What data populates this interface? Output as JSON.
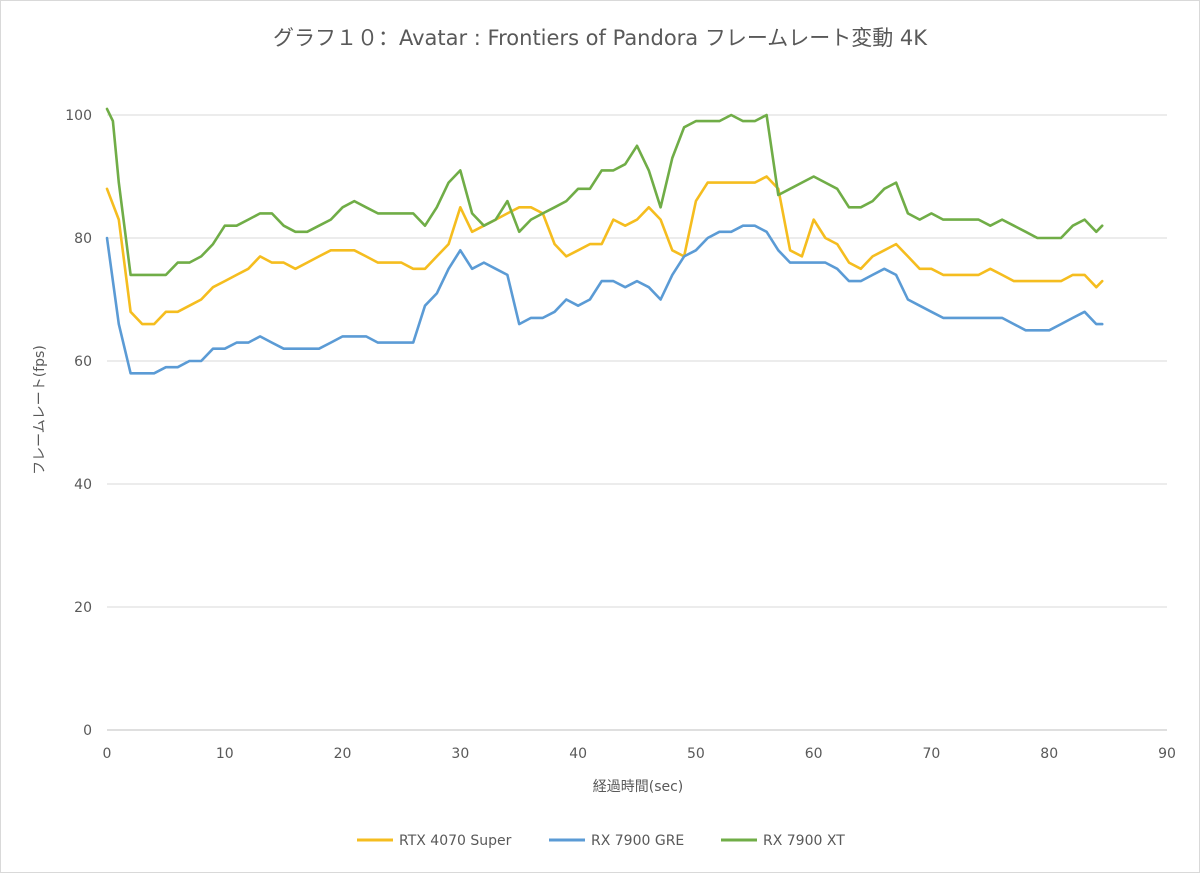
{
  "chart_data": {
    "type": "line",
    "title": "グラフ１０：Avatar : Frontiers of Pandora フレームレート変動 4K",
    "xlabel": "経過時間(sec)",
    "ylabel": "フレームレート(fps)",
    "xlim": [
      0,
      90
    ],
    "ylim": [
      0,
      100
    ],
    "x_ticks": [
      0,
      10,
      20,
      30,
      40,
      50,
      60,
      70,
      80,
      90
    ],
    "y_ticks": [
      0,
      20,
      40,
      60,
      80,
      100
    ],
    "grid": "horizontal",
    "legend": "bottom",
    "series": [
      {
        "name": "RTX 4070 Super",
        "color": "#f5bd1f",
        "x": [
          0,
          1,
          2,
          3,
          4,
          5,
          6,
          7,
          8,
          9,
          10,
          11,
          12,
          13,
          14,
          15,
          16,
          17,
          18,
          19,
          20,
          21,
          22,
          23,
          24,
          25,
          26,
          27,
          28,
          29,
          30,
          31,
          32,
          33,
          34,
          35,
          36,
          37,
          38,
          39,
          40,
          41,
          42,
          43,
          44,
          45,
          46,
          47,
          48,
          49,
          50,
          51,
          52,
          53,
          54,
          55,
          56,
          57,
          58,
          59,
          60,
          61,
          62,
          63,
          64,
          65,
          66,
          67,
          68,
          69,
          70,
          71,
          72,
          73,
          74,
          75,
          76,
          77,
          78,
          79,
          80,
          81,
          82,
          83,
          84,
          84.5
        ],
        "y": [
          88,
          83,
          68,
          66,
          66,
          68,
          68,
          69,
          70,
          72,
          73,
          74,
          75,
          77,
          76,
          76,
          75,
          76,
          77,
          78,
          78,
          78,
          77,
          76,
          76,
          76,
          75,
          75,
          77,
          79,
          85,
          81,
          82,
          83,
          84,
          85,
          85,
          84,
          79,
          77,
          78,
          79,
          79,
          83,
          82,
          83,
          85,
          83,
          78,
          77,
          86,
          89,
          89,
          89,
          89,
          89,
          90,
          88,
          78,
          77,
          83,
          80,
          79,
          76,
          75,
          77,
          78,
          79,
          77,
          75,
          75,
          74,
          74,
          74,
          74,
          75,
          74,
          73,
          73,
          73,
          73,
          73,
          74,
          74,
          72,
          73
        ]
      },
      {
        "name": "RX 7900 GRE",
        "color": "#5b9bd5",
        "x": [
          0,
          1,
          2,
          3,
          4,
          5,
          6,
          7,
          8,
          9,
          10,
          11,
          12,
          13,
          14,
          15,
          16,
          17,
          18,
          19,
          20,
          21,
          22,
          23,
          24,
          25,
          26,
          27,
          28,
          29,
          30,
          31,
          32,
          33,
          34,
          35,
          36,
          37,
          38,
          39,
          40,
          41,
          42,
          43,
          44,
          45,
          46,
          47,
          48,
          49,
          50,
          51,
          52,
          53,
          54,
          55,
          56,
          57,
          58,
          59,
          60,
          61,
          62,
          63,
          64,
          65,
          66,
          67,
          68,
          69,
          70,
          71,
          72,
          73,
          74,
          75,
          76,
          77,
          78,
          79,
          80,
          81,
          82,
          83,
          84,
          84.5
        ],
        "y": [
          80,
          66,
          58,
          58,
          58,
          59,
          59,
          60,
          60,
          62,
          62,
          63,
          63,
          64,
          63,
          62,
          62,
          62,
          62,
          63,
          64,
          64,
          64,
          63,
          63,
          63,
          63,
          69,
          71,
          75,
          78,
          75,
          76,
          75,
          74,
          66,
          67,
          67,
          68,
          70,
          69,
          70,
          73,
          73,
          72,
          73,
          72,
          70,
          74,
          77,
          78,
          80,
          81,
          81,
          82,
          82,
          81,
          78,
          76,
          76,
          76,
          76,
          75,
          73,
          73,
          74,
          75,
          74,
          70,
          69,
          68,
          67,
          67,
          67,
          67,
          67,
          67,
          66,
          65,
          65,
          65,
          66,
          67,
          68,
          66,
          66
        ]
      },
      {
        "name": "RX 7900 XT",
        "color": "#70ad47",
        "x": [
          0,
          0.5,
          1,
          2,
          3,
          4,
          5,
          6,
          7,
          8,
          9,
          10,
          11,
          12,
          13,
          14,
          15,
          16,
          17,
          18,
          19,
          20,
          21,
          22,
          23,
          24,
          25,
          26,
          27,
          28,
          29,
          30,
          31,
          32,
          33,
          34,
          35,
          36,
          37,
          38,
          39,
          40,
          41,
          42,
          43,
          44,
          45,
          46,
          47,
          48,
          49,
          50,
          51,
          52,
          53,
          54,
          55,
          56,
          57,
          58,
          59,
          60,
          61,
          62,
          63,
          64,
          65,
          66,
          67,
          68,
          69,
          70,
          71,
          72,
          73,
          74,
          75,
          76,
          77,
          78,
          79,
          80,
          81,
          82,
          83,
          84,
          84.5
        ],
        "y": [
          101,
          99,
          89,
          74,
          74,
          74,
          74,
          76,
          76,
          77,
          79,
          82,
          82,
          83,
          84,
          84,
          82,
          81,
          81,
          82,
          83,
          85,
          86,
          85,
          84,
          84,
          84,
          84,
          82,
          85,
          89,
          91,
          84,
          82,
          83,
          86,
          81,
          83,
          84,
          85,
          86,
          88,
          88,
          91,
          91,
          92,
          95,
          91,
          85,
          93,
          98,
          99,
          99,
          99,
          100,
          99,
          99,
          100,
          87,
          88,
          89,
          90,
          89,
          88,
          85,
          85,
          86,
          88,
          89,
          84,
          83,
          84,
          83,
          83,
          83,
          83,
          82,
          83,
          82,
          81,
          80,
          80,
          80,
          82,
          83,
          81,
          82
        ]
      }
    ]
  }
}
